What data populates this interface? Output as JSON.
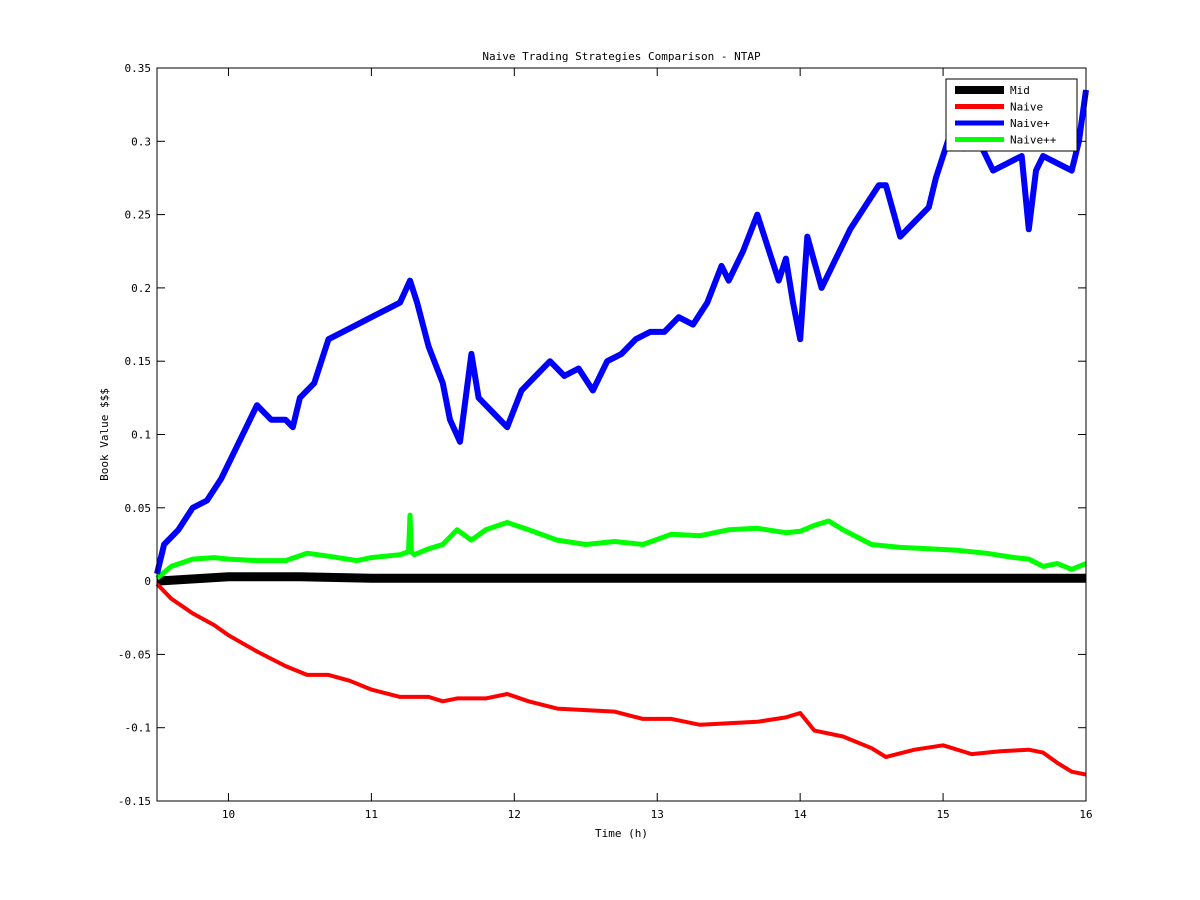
{
  "chart_data": {
    "type": "line",
    "title": "Naive Trading Strategies Comparison - NTAP",
    "xlabel": "Time (h)",
    "ylabel": "Book Value $$$",
    "xlim": [
      9.5,
      16
    ],
    "ylim": [
      -0.15,
      0.35
    ],
    "xticks": [
      10,
      11,
      12,
      13,
      14,
      15,
      16
    ],
    "yticks": [
      -0.15,
      -0.1,
      -0.05,
      0,
      0.05,
      0.1,
      0.15,
      0.2,
      0.25,
      0.3,
      0.35
    ],
    "xtick_labels": [
      "10",
      "11",
      "12",
      "13",
      "14",
      "15",
      "16"
    ],
    "ytick_labels": [
      "-0.15",
      "-0.1",
      "-0.05",
      "0",
      "0.05",
      "0.1",
      "0.15",
      "0.2",
      "0.25",
      "0.3",
      "0.35"
    ],
    "grid": false,
    "legend_position": "top-right",
    "series": [
      {
        "name": "Mid",
        "color": "#000000",
        "x": [
          9.5,
          10.0,
          10.5,
          11.0,
          11.5,
          12.0,
          12.5,
          13.0,
          13.5,
          14.0,
          14.5,
          15.0,
          15.5,
          16.0
        ],
        "y": [
          0.0,
          0.003,
          0.003,
          0.002,
          0.002,
          0.002,
          0.002,
          0.002,
          0.002,
          0.002,
          0.002,
          0.002,
          0.002,
          0.002
        ]
      },
      {
        "name": "Naive",
        "color": "#ff0000",
        "x": [
          9.5,
          9.6,
          9.75,
          9.9,
          10.0,
          10.2,
          10.4,
          10.55,
          10.7,
          10.85,
          11.0,
          11.2,
          11.4,
          11.5,
          11.6,
          11.8,
          11.95,
          12.1,
          12.3,
          12.5,
          12.7,
          12.9,
          13.1,
          13.3,
          13.5,
          13.7,
          13.9,
          14.0,
          14.1,
          14.3,
          14.5,
          14.6,
          14.8,
          15.0,
          15.2,
          15.4,
          15.6,
          15.7,
          15.8,
          15.9,
          16.0
        ],
        "y": [
          -0.002,
          -0.012,
          -0.022,
          -0.03,
          -0.037,
          -0.048,
          -0.058,
          -0.064,
          -0.064,
          -0.068,
          -0.074,
          -0.079,
          -0.079,
          -0.082,
          -0.08,
          -0.08,
          -0.077,
          -0.082,
          -0.087,
          -0.088,
          -0.089,
          -0.094,
          -0.094,
          -0.098,
          -0.097,
          -0.096,
          -0.093,
          -0.09,
          -0.102,
          -0.106,
          -0.114,
          -0.12,
          -0.115,
          -0.112,
          -0.118,
          -0.116,
          -0.115,
          -0.117,
          -0.124,
          -0.13,
          -0.132
        ]
      },
      {
        "name": "Naive+",
        "color": "#0000ff",
        "x": [
          9.5,
          9.55,
          9.65,
          9.75,
          9.85,
          9.95,
          10.05,
          10.15,
          10.2,
          10.3,
          10.4,
          10.45,
          10.5,
          10.6,
          10.7,
          10.8,
          10.9,
          11.0,
          11.1,
          11.2,
          11.27,
          11.32,
          11.4,
          11.5,
          11.55,
          11.62,
          11.7,
          11.75,
          11.85,
          11.95,
          12.05,
          12.15,
          12.25,
          12.35,
          12.45,
          12.55,
          12.65,
          12.75,
          12.85,
          12.95,
          13.05,
          13.15,
          13.25,
          13.35,
          13.45,
          13.5,
          13.6,
          13.7,
          13.75,
          13.85,
          13.9,
          13.95,
          14.0,
          14.05,
          14.15,
          14.25,
          14.35,
          14.45,
          14.55,
          14.6,
          14.7,
          14.8,
          14.9,
          14.95,
          15.05,
          15.15,
          15.25,
          15.35,
          15.45,
          15.55,
          15.6,
          15.65,
          15.7,
          15.8,
          15.9,
          15.95,
          16.0
        ],
        "y": [
          0.005,
          0.025,
          0.035,
          0.05,
          0.055,
          0.07,
          0.09,
          0.11,
          0.12,
          0.11,
          0.11,
          0.105,
          0.125,
          0.135,
          0.165,
          0.17,
          0.175,
          0.18,
          0.185,
          0.19,
          0.205,
          0.19,
          0.16,
          0.135,
          0.11,
          0.095,
          0.155,
          0.125,
          0.115,
          0.105,
          0.13,
          0.14,
          0.15,
          0.14,
          0.145,
          0.13,
          0.15,
          0.155,
          0.165,
          0.17,
          0.17,
          0.18,
          0.175,
          0.19,
          0.215,
          0.205,
          0.225,
          0.25,
          0.235,
          0.205,
          0.22,
          0.19,
          0.165,
          0.235,
          0.2,
          0.22,
          0.24,
          0.255,
          0.27,
          0.27,
          0.235,
          0.245,
          0.255,
          0.275,
          0.305,
          0.295,
          0.3,
          0.28,
          0.285,
          0.29,
          0.24,
          0.28,
          0.29,
          0.285,
          0.28,
          0.3,
          0.335
        ]
      },
      {
        "name": "Naive++",
        "color": "#00ff00",
        "x": [
          9.5,
          9.6,
          9.75,
          9.9,
          10.0,
          10.2,
          10.4,
          10.55,
          10.7,
          10.9,
          11.0,
          11.2,
          11.26,
          11.27,
          11.28,
          11.3,
          11.4,
          11.5,
          11.6,
          11.7,
          11.8,
          11.95,
          12.1,
          12.3,
          12.5,
          12.7,
          12.9,
          13.1,
          13.3,
          13.5,
          13.7,
          13.9,
          14.0,
          14.1,
          14.2,
          14.3,
          14.4,
          14.5,
          14.7,
          14.9,
          15.1,
          15.3,
          15.5,
          15.6,
          15.7,
          15.8,
          15.9,
          16.0
        ],
        "y": [
          0.002,
          0.01,
          0.015,
          0.016,
          0.015,
          0.014,
          0.014,
          0.019,
          0.017,
          0.014,
          0.016,
          0.018,
          0.02,
          0.045,
          0.02,
          0.018,
          0.022,
          0.025,
          0.035,
          0.028,
          0.035,
          0.04,
          0.035,
          0.028,
          0.025,
          0.027,
          0.025,
          0.032,
          0.031,
          0.035,
          0.036,
          0.033,
          0.034,
          0.038,
          0.041,
          0.035,
          0.03,
          0.025,
          0.023,
          0.022,
          0.021,
          0.019,
          0.016,
          0.015,
          0.01,
          0.012,
          0.008,
          0.012
        ]
      }
    ]
  }
}
